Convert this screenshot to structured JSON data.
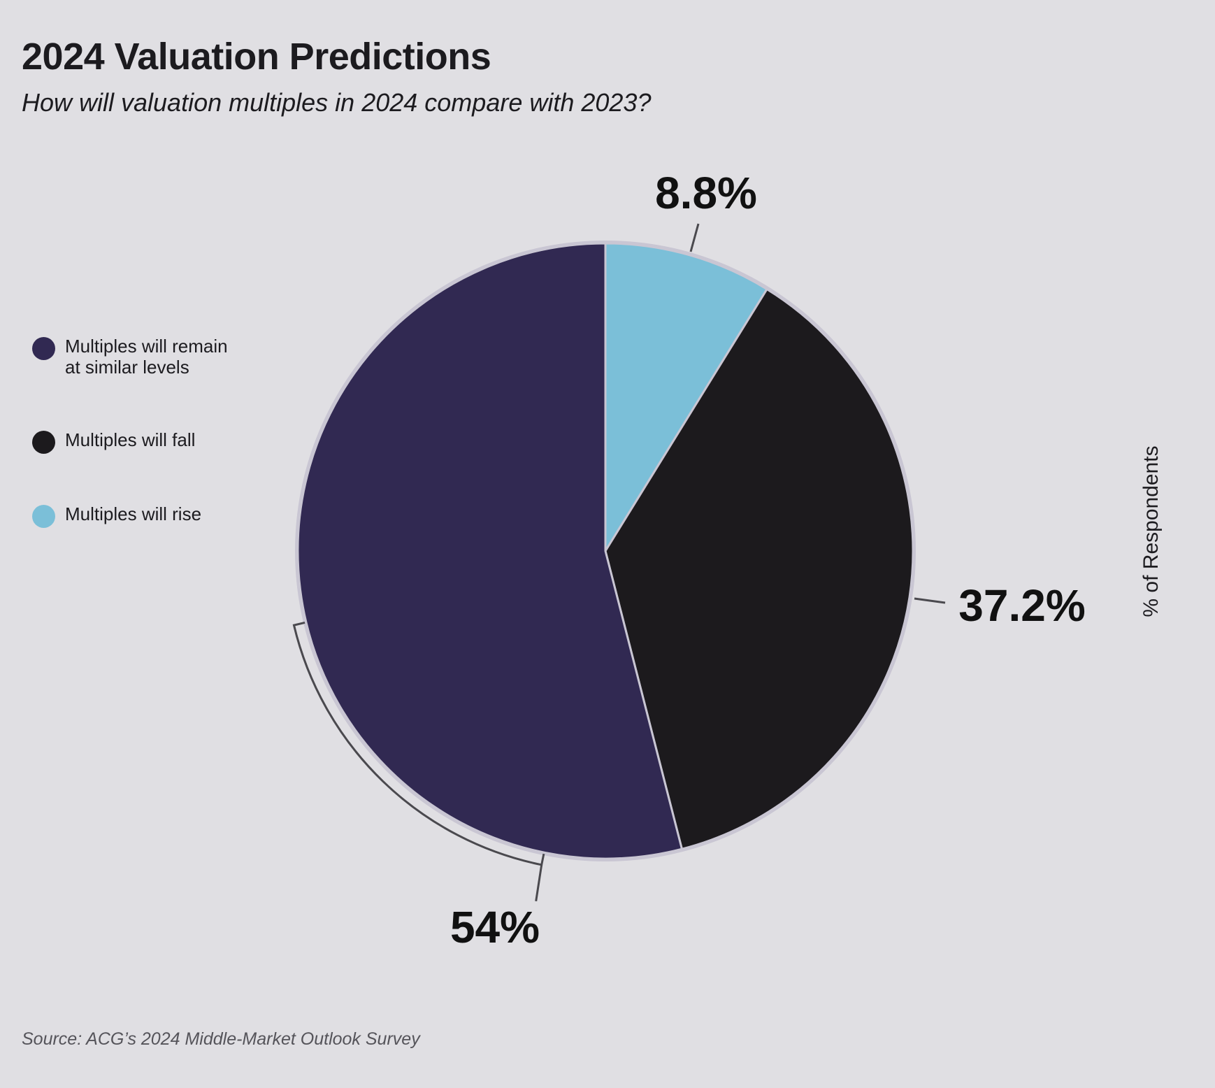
{
  "chart_data": {
    "type": "pie",
    "title": "2024 Valuation Predictions",
    "subtitle": "How will valuation multiples in 2024 compare with 2023?",
    "ylabel": "% of Respondents",
    "source": "Source: ACG’s 2024 Middle-Market Outlook Survey",
    "legend_position": "left",
    "slices": [
      {
        "label": "Multiples will rise",
        "value": 8.8,
        "display": "8.8%",
        "color": "#7bbfd8"
      },
      {
        "label": "Multiples will fall",
        "value": 37.2,
        "display": "37.2%",
        "color": "#1c1a1d"
      },
      {
        "label": "Multiples will remain\nat similar levels",
        "value": 54,
        "display": "54%",
        "color": "#312952"
      }
    ],
    "legend": [
      {
        "label": "Multiples will remain\nat similar levels",
        "color": "#312952"
      },
      {
        "label": "Multiples will fall",
        "color": "#1c1a1d"
      },
      {
        "label": "Multiples will rise",
        "color": "#7bbfd8"
      }
    ]
  }
}
